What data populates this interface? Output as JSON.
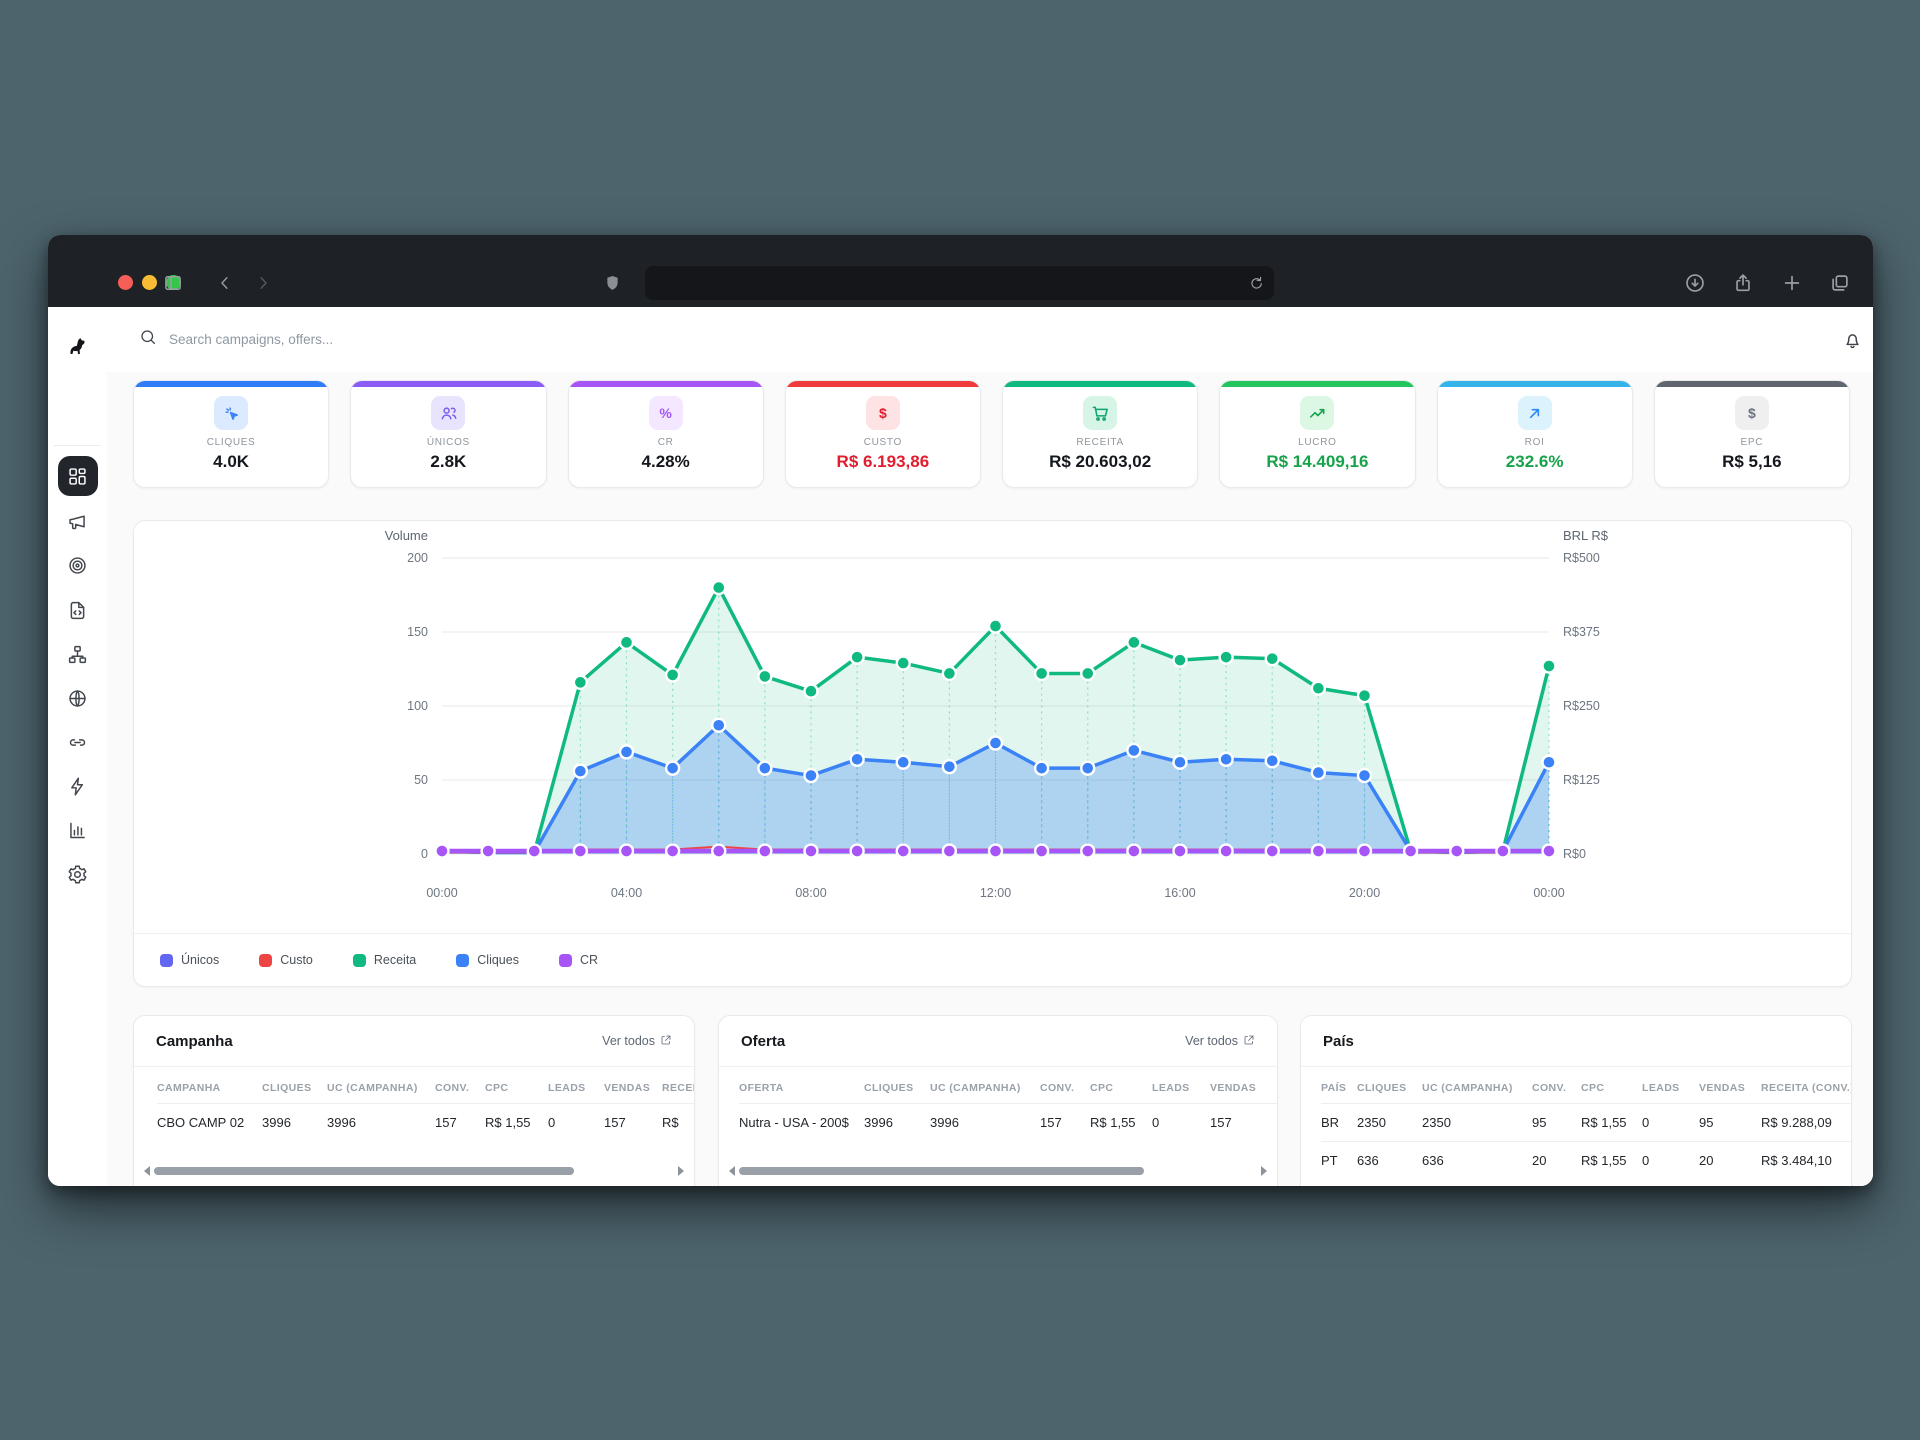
{
  "browser": {
    "url_value": "",
    "traffic_lights": [
      "#f55f57",
      "#f8bc34",
      "#34c648"
    ],
    "toolbar_icons": [
      "panel-left",
      "back-chevron",
      "forward-chevron",
      "shield",
      "reload",
      "download",
      "share",
      "new-tab-plus",
      "tab-overview"
    ]
  },
  "header": {
    "search_placeholder": "Search campaigns, offers...",
    "icons": [
      "search-icon",
      "bell-icon",
      "user-avatar"
    ]
  },
  "sidebar": {
    "logo": "dog-logo",
    "icons": [
      "dashboard-grid",
      "megaphone",
      "target",
      "file-code",
      "sitemap",
      "globe",
      "link",
      "lightning",
      "bar-chart",
      "gear"
    ],
    "active": "dashboard-grid",
    "bottom_icon": "panel-left"
  },
  "kpis": [
    {
      "label": "CLIQUES",
      "value": "4.0K",
      "accent": "#2f7cf6",
      "icon": "cursor-click",
      "icon_bg": "#dbeafe",
      "icon_color": "#3b82f6",
      "value_color": "#14181d"
    },
    {
      "label": "ÚNICOS",
      "value": "2.8K",
      "accent": "#8b5cf6",
      "icon": "users",
      "icon_bg": "#e9e4fd",
      "icon_color": "#7c5ff0",
      "value_color": "#14181d"
    },
    {
      "label": "CR",
      "value": "4.28%",
      "accent": "#a855f7",
      "icon": "percent",
      "icon_bg": "#f3e8ff",
      "icon_color": "#a855f7",
      "value_color": "#14181d"
    },
    {
      "label": "CUSTO",
      "value": "R$ 6.193,86",
      "accent": "#ef3b3b",
      "icon": "dollar",
      "icon_bg": "#fde3e3",
      "icon_color": "#e11d2e",
      "value_color": "#e11d2e"
    },
    {
      "label": "RECEITA",
      "value": "R$ 20.603,02",
      "accent": "#10b981",
      "icon": "cart",
      "icon_bg": "#d6f5e7",
      "icon_color": "#0ea371",
      "value_color": "#14181d"
    },
    {
      "label": "LUCRO",
      "value": "R$ 14.409,16",
      "accent": "#22c55e",
      "icon": "trend-up",
      "icon_bg": "#dcf8e5",
      "icon_color": "#16a34a",
      "value_color": "#16a34a"
    },
    {
      "label": "ROI",
      "value": "232.6%",
      "accent": "#35b4ec",
      "icon": "arrow-up-right",
      "icon_bg": "#dcf2fd",
      "icon_color": "#2f86f6",
      "value_color": "#16a34a"
    },
    {
      "label": "EPC",
      "value": "R$ 5,16",
      "accent": "#606670",
      "icon": "dollar",
      "icon_bg": "#efefef",
      "icon_color": "#6b7280",
      "value_color": "#14181d"
    }
  ],
  "chart_data": {
    "type": "line",
    "x_hours": [
      0,
      1,
      2,
      3,
      4,
      5,
      6,
      7,
      8,
      9,
      10,
      11,
      12,
      13,
      14,
      15,
      16,
      17,
      18,
      19,
      20,
      21,
      22,
      23,
      24
    ],
    "x_tick_labels": [
      "00:00",
      "04:00",
      "08:00",
      "12:00",
      "16:00",
      "20:00",
      "00:00"
    ],
    "x_tick_hours": [
      0,
      4,
      8,
      12,
      16,
      20,
      24
    ],
    "left_axis": {
      "title": "Volume",
      "ticks": [
        0,
        50,
        100,
        150,
        200
      ],
      "max": 200
    },
    "right_axis": {
      "title": "BRL R$",
      "tick_labels": [
        "R$0",
        "R$125",
        "R$250",
        "R$375",
        "R$500"
      ]
    },
    "grid": true,
    "legend_position": "bottom",
    "series": [
      {
        "name": "Únicos",
        "color": "#6366f1",
        "overlapped": true,
        "values": [
          2,
          1,
          1,
          56,
          69,
          58,
          87,
          58,
          53,
          64,
          62,
          59,
          75,
          58,
          58,
          70,
          62,
          64,
          63,
          55,
          53,
          2,
          1,
          2,
          62
        ]
      },
      {
        "name": "Custo",
        "color": "#ef4444",
        "values": [
          1,
          1,
          1,
          3,
          3,
          3,
          5,
          3,
          3,
          3,
          3,
          3,
          3,
          3,
          3,
          3,
          3,
          3,
          3,
          3,
          3,
          1,
          1,
          1,
          3
        ]
      },
      {
        "name": "Receita",
        "color": "#10b981",
        "fill": true,
        "values": [
          2,
          1,
          1,
          116,
          143,
          121,
          180,
          120,
          110,
          133,
          129,
          122,
          154,
          122,
          122,
          143,
          131,
          133,
          132,
          112,
          107,
          2,
          1,
          2,
          127
        ]
      },
      {
        "name": "Cliques",
        "color": "#3b82f6",
        "fill": true,
        "values": [
          2,
          1,
          1,
          56,
          69,
          58,
          87,
          58,
          53,
          64,
          62,
          59,
          75,
          58,
          58,
          70,
          62,
          64,
          63,
          55,
          53,
          2,
          1,
          2,
          62
        ]
      },
      {
        "name": "CR",
        "color": "#a855f7",
        "values": [
          2,
          2,
          2,
          2,
          2,
          2,
          2,
          2,
          2,
          2,
          2,
          2,
          2,
          2,
          2,
          2,
          2,
          2,
          2,
          2,
          2,
          2,
          2,
          2,
          2
        ]
      }
    ]
  },
  "tables": [
    {
      "title": "Campanha",
      "link": "Ver todos",
      "headers": [
        "CAMPANHA",
        "CLIQUES",
        "UC (CAMPANHA)",
        "CONV.",
        "CPC",
        "LEADS",
        "VENDAS",
        "RECEITA (CONV.)"
      ],
      "rows": [
        [
          "CBO CAMP 02",
          "3996",
          "3996",
          "157",
          "R$ 1,55",
          "0",
          "157",
          "R$"
        ]
      ],
      "scrollbar": true
    },
    {
      "title": "Oferta",
      "link": "Ver todos",
      "headers": [
        "OFERTA",
        "CLIQUES",
        "UC (CAMPANHA)",
        "CONV.",
        "CPC",
        "LEADS",
        "VENDAS"
      ],
      "rows": [
        [
          "Nutra - USA - 200$",
          "3996",
          "3996",
          "157",
          "R$ 1,55",
          "0",
          "157"
        ]
      ],
      "scrollbar": true
    },
    {
      "title": "País",
      "link": "",
      "headers": [
        "PAÍS",
        "CLIQUES",
        "UC (CAMPANHA)",
        "CONV.",
        "CPC",
        "LEADS",
        "VENDAS",
        "RECEITA (CONV.)"
      ],
      "rows": [
        [
          "BR",
          "2350",
          "2350",
          "95",
          "R$ 1,55",
          "0",
          "95",
          "R$ 9.288,09"
        ],
        [
          "PT",
          "636",
          "636",
          "20",
          "R$ 1,55",
          "0",
          "20",
          "R$ 3.484,10"
        ]
      ],
      "scrollbar": false
    }
  ]
}
